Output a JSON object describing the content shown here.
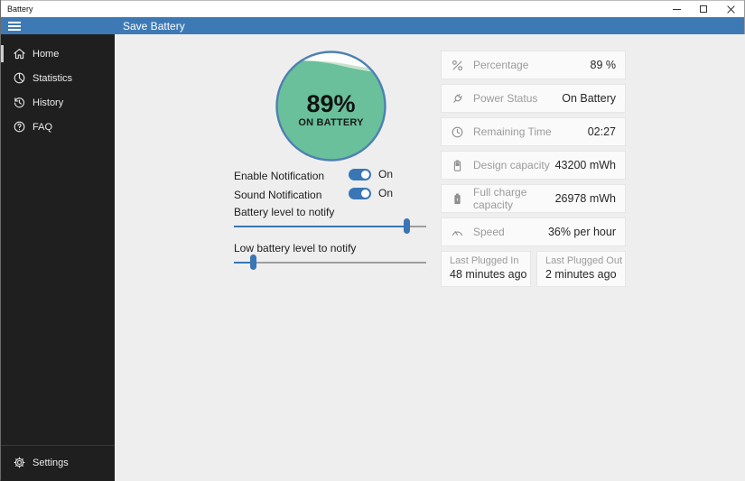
{
  "window": {
    "title": "Battery"
  },
  "header": {
    "title": "Save Battery"
  },
  "sidebar": {
    "items": [
      {
        "label": "Home",
        "icon": "home-icon",
        "selected": true
      },
      {
        "label": "Statistics",
        "icon": "pie-chart-icon",
        "selected": false
      },
      {
        "label": "History",
        "icon": "history-icon",
        "selected": false
      },
      {
        "label": "FAQ",
        "icon": "question-circle-icon",
        "selected": false
      }
    ],
    "footer": {
      "label": "Settings",
      "icon": "gear-icon"
    }
  },
  "gauge": {
    "percent": "89%",
    "status": "ON BATTERY",
    "fill_color": "#69c09b",
    "light_band_color": "#c9e2cd",
    "empty_color": "#fcfdfc",
    "border_color": "#4d80b2"
  },
  "controls": {
    "toggles": [
      {
        "label": "Enable Notification",
        "state": "On"
      },
      {
        "label": "Sound Notification",
        "state": "On"
      }
    ],
    "sliders": [
      {
        "label": "Battery level to notify",
        "value_percent": 90
      },
      {
        "label": "Low battery level to notify",
        "value_percent": 10
      }
    ],
    "accent_color": "#3876b4"
  },
  "stats": {
    "cards": [
      {
        "icon": "percentage-icon",
        "label": "Percentage",
        "value": "89 %"
      },
      {
        "icon": "power-plug-icon",
        "label": "Power Status",
        "value": "On Battery"
      },
      {
        "icon": "clock-icon",
        "label": "Remaining Time",
        "value": "02:27"
      },
      {
        "icon": "battery-outline-icon",
        "label": "Design capacity",
        "value": "43200 mWh"
      },
      {
        "icon": "battery-full-icon",
        "label": "Full charge capacity",
        "value": "26978 mWh"
      },
      {
        "icon": "speedometer-icon",
        "label": "Speed",
        "value": "36% per hour"
      }
    ],
    "mini_cards": [
      {
        "label": "Last Plugged In",
        "value": "48 minutes ago"
      },
      {
        "label": "Last Plugged Out",
        "value": "2 minutes ago"
      }
    ]
  }
}
